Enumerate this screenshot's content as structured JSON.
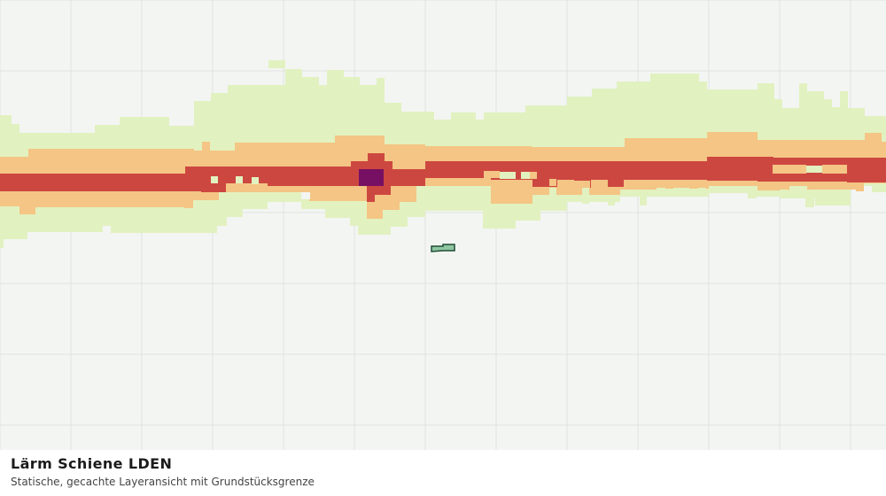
{
  "title": "Lärm Schiene LDEN",
  "subtitle": "Statische, gecachte Layeransicht mit Grundstücksgrenze",
  "colors": {
    "background": "#f3f5f2",
    "grid": "#dfe2de",
    "class_low": "#e2f1c0",
    "class_mid": "#f4c584",
    "class_high": "#cd4741",
    "class_max": "#770f62",
    "parcel_fill": "#8fc7a2",
    "parcel_stroke": "#1f4d34"
  }
}
